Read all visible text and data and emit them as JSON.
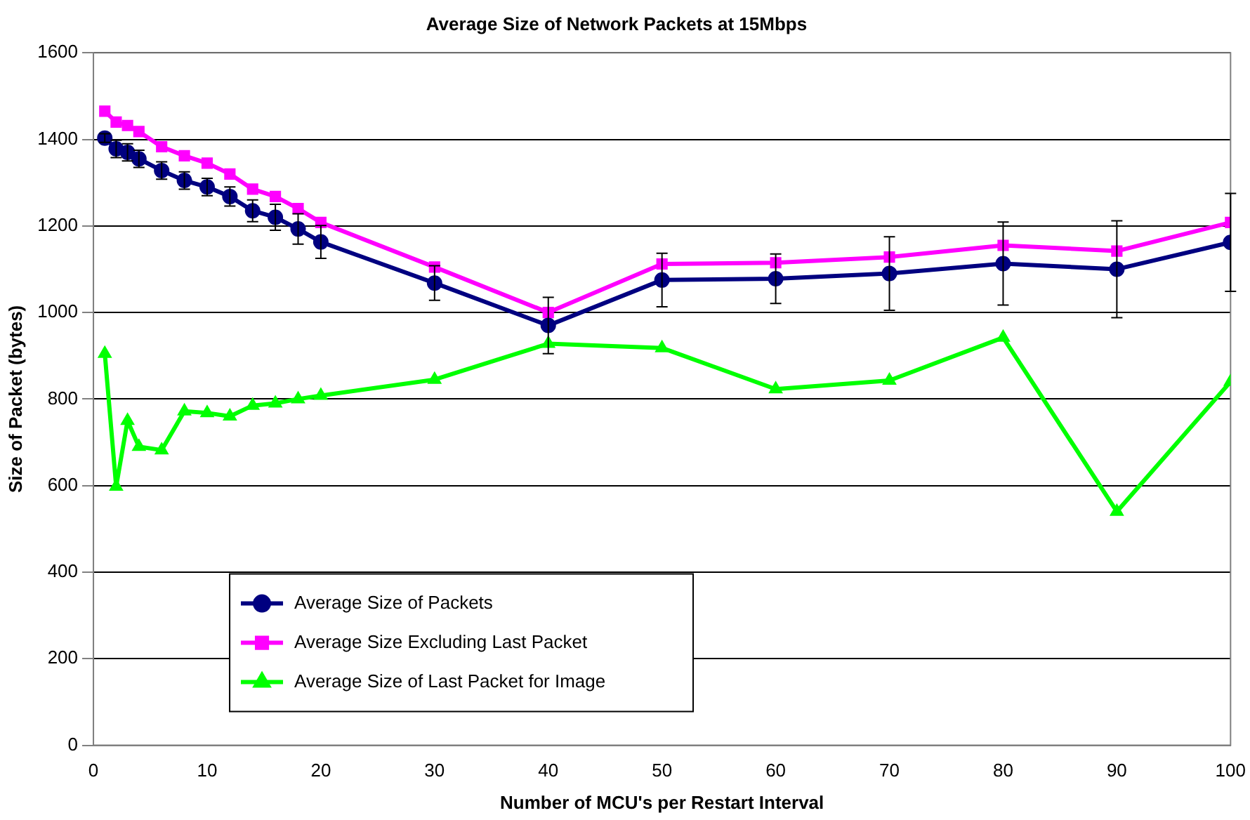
{
  "chart_data": {
    "type": "line",
    "title": "Average Size of Network Packets at 15Mbps",
    "xlabel": "Number of MCU's per Restart Interval",
    "ylabel": "Size of Packet (bytes)",
    "x": [
      1,
      2,
      3,
      4,
      6,
      8,
      10,
      12,
      14,
      16,
      18,
      20,
      30,
      40,
      50,
      60,
      70,
      80,
      90,
      100
    ],
    "series": [
      {
        "name": "Average Size of Packets",
        "color": "#000080",
        "marker": "circle",
        "values": [
          1403,
          1378,
          1370,
          1355,
          1328,
          1305,
          1290,
          1268,
          1235,
          1220,
          1193,
          1163,
          1068,
          970,
          1075,
          1078,
          1090,
          1113,
          1100,
          1162
        ],
        "errors": [
          10,
          20,
          20,
          20,
          20,
          20,
          20,
          22,
          25,
          30,
          35,
          38,
          40,
          65,
          62,
          57,
          85,
          96,
          112,
          113
        ]
      },
      {
        "name": "Average Size Excluding Last Packet",
        "color": "#ff00ff",
        "marker": "square",
        "values": [
          1465,
          1440,
          1432,
          1418,
          1383,
          1362,
          1345,
          1320,
          1285,
          1268,
          1240,
          1208,
          1105,
          1000,
          1112,
          1115,
          1128,
          1155,
          1142,
          1208
        ]
      },
      {
        "name": "Average Size of Last Packet for Image",
        "color": "#00ff00",
        "marker": "triangle",
        "values": [
          905,
          598,
          750,
          690,
          682,
          772,
          768,
          760,
          785,
          790,
          800,
          808,
          845,
          928,
          918,
          823,
          843,
          942,
          540,
          840
        ]
      }
    ],
    "xlim": [
      0,
      100
    ],
    "xticks": [
      0,
      10,
      20,
      30,
      40,
      50,
      60,
      70,
      80,
      90,
      100
    ],
    "ylim": [
      0,
      1600
    ],
    "yticks": [
      0,
      200,
      400,
      600,
      800,
      1000,
      1200,
      1400,
      1600
    ],
    "grid": "y",
    "legend": "bottom left",
    "line_style": "solid"
  }
}
